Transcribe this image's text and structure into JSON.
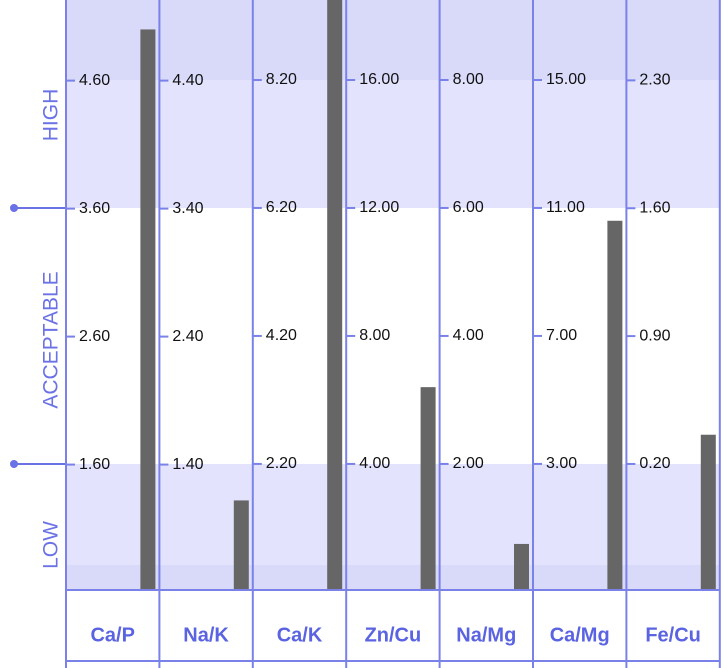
{
  "zones": [
    "HIGH",
    "ACCEPTABLE",
    "LOW"
  ],
  "chart_data": [
    {
      "type": "bar",
      "categories": [
        "Ca/P"
      ],
      "values": [
        5.0
      ],
      "color": "#666666",
      "ylim": [
        0.62,
        5.23
      ],
      "yticks": [
        {
          "value": 1.6,
          "label": "1.60"
        },
        {
          "value": 2.6,
          "label": "2.60"
        },
        {
          "value": 3.6,
          "label": "3.60"
        },
        {
          "value": 4.6,
          "label": "4.60"
        }
      ]
    },
    {
      "type": "bar",
      "categories": [
        "Na/K"
      ],
      "values": [
        1.12
      ],
      "color": "#666666",
      "ylim": [
        0.42,
        5.03
      ],
      "yticks": [
        {
          "value": 1.4,
          "label": "1.40"
        },
        {
          "value": 2.4,
          "label": "2.40"
        },
        {
          "value": 3.4,
          "label": "3.40"
        },
        {
          "value": 4.4,
          "label": "4.40"
        }
      ]
    },
    {
      "type": "bar",
      "categories": [
        "Ca/K"
      ],
      "values": [
        9.5
      ],
      "color": "#666666",
      "ylim": [
        0.23,
        9.45
      ],
      "yticks": [
        {
          "value": 2.2,
          "label": "2.20"
        },
        {
          "value": 4.2,
          "label": "4.20"
        },
        {
          "value": 6.2,
          "label": "6.20"
        },
        {
          "value": 8.2,
          "label": "8.20"
        }
      ]
    },
    {
      "type": "bar",
      "categories": [
        "Zn/Cu"
      ],
      "values": [
        6.4
      ],
      "color": "#666666",
      "ylim": [
        0.06,
        18.5
      ],
      "yticks": [
        {
          "value": 4,
          "label": "4.00"
        },
        {
          "value": 8,
          "label": "8.00"
        },
        {
          "value": 12,
          "label": "12.00"
        },
        {
          "value": 16,
          "label": "16.00"
        }
      ]
    },
    {
      "type": "bar",
      "categories": [
        "Na/Mg"
      ],
      "values": [
        0.75
      ],
      "color": "#666666",
      "ylim": [
        0.03,
        9.25
      ],
      "yticks": [
        {
          "value": 2,
          "label": "2.00"
        },
        {
          "value": 4,
          "label": "4.00"
        },
        {
          "value": 6,
          "label": "6.00"
        },
        {
          "value": 8,
          "label": "8.00"
        }
      ]
    },
    {
      "type": "bar",
      "categories": [
        "Ca/Mg"
      ],
      "values": [
        10.6
      ],
      "color": "#666666",
      "ylim": [
        -0.94,
        17.5
      ],
      "yticks": [
        {
          "value": 3,
          "label": "3.00"
        },
        {
          "value": 7,
          "label": "7.00"
        },
        {
          "value": 11,
          "label": "11.00"
        },
        {
          "value": 15,
          "label": "15.00"
        }
      ]
    },
    {
      "type": "bar",
      "categories": [
        "Fe/Cu"
      ],
      "values": [
        0.36
      ],
      "color": "#666666",
      "ylim": [
        -0.49,
        2.74
      ],
      "yticks": [
        {
          "value": 0.2,
          "label": "0.20"
        },
        {
          "value": 0.9,
          "label": "0.90"
        },
        {
          "value": 1.6,
          "label": "1.60"
        },
        {
          "value": 2.3,
          "label": "2.30"
        }
      ]
    }
  ]
}
